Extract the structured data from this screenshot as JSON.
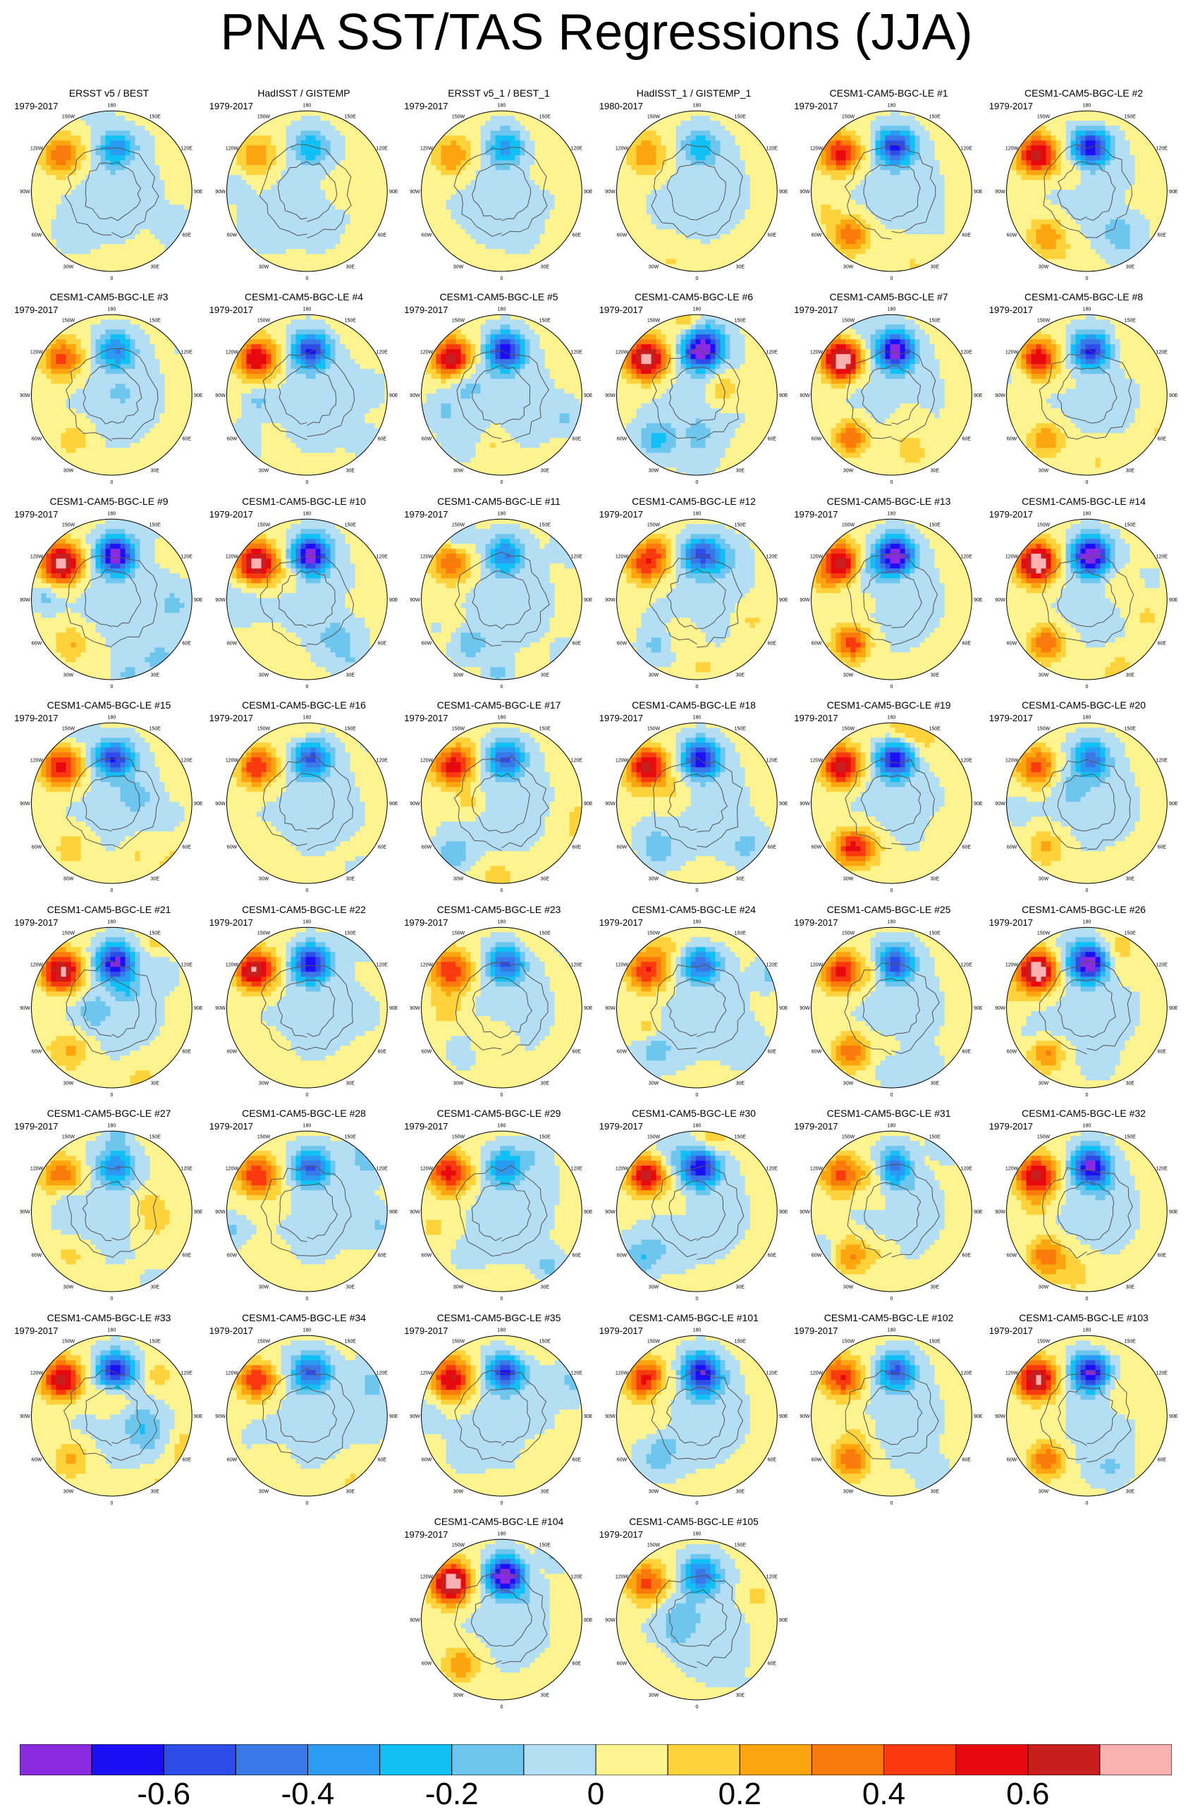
{
  "title": "PNA SST/TAS Regressions (JJA)",
  "panel_lon_labels": [
    "180",
    "150E",
    "120E",
    "90E",
    "60E",
    "30E",
    "0",
    "30W",
    "60W",
    "90W",
    "120W",
    "150W"
  ],
  "panels": [
    {
      "title": "ERSST v5 / BEST",
      "years": "1979-2017",
      "pattern": "obs",
      "strength": 0.35,
      "seed": 1
    },
    {
      "title": "HadISST / GISTEMP",
      "years": "1979-2017",
      "pattern": "obs",
      "strength": 0.25,
      "seed": 2
    },
    {
      "title": "ERSST v5_1 / BEST_1",
      "years": "1979-2017",
      "pattern": "obs",
      "strength": 0.3,
      "seed": 3
    },
    {
      "title": "HadISST_1 / GISTEMP_1",
      "years": "1980-2017",
      "pattern": "obs",
      "strength": 0.25,
      "seed": 4
    },
    {
      "title": "CESM1-CAM5-BGC-LE #1",
      "years": "1979-2017",
      "pattern": "model",
      "strength": 0.55,
      "seed": 5
    },
    {
      "title": "CESM1-CAM5-BGC-LE #2",
      "years": "1979-2017",
      "pattern": "model",
      "strength": 0.6,
      "seed": 6
    },
    {
      "title": "CESM1-CAM5-BGC-LE #3",
      "years": "1979-2017",
      "pattern": "model",
      "strength": 0.4,
      "seed": 7
    },
    {
      "title": "CESM1-CAM5-BGC-LE #4",
      "years": "1979-2017",
      "pattern": "model",
      "strength": 0.55,
      "seed": 8
    },
    {
      "title": "CESM1-CAM5-BGC-LE #5",
      "years": "1979-2017",
      "pattern": "model",
      "strength": 0.6,
      "seed": 9
    },
    {
      "title": "CESM1-CAM5-BGC-LE #6",
      "years": "1979-2017",
      "pattern": "model",
      "strength": 0.7,
      "seed": 10
    },
    {
      "title": "CESM1-CAM5-BGC-LE #7",
      "years": "1979-2017",
      "pattern": "model",
      "strength": 0.7,
      "seed": 11
    },
    {
      "title": "CESM1-CAM5-BGC-LE #8",
      "years": "1979-2017",
      "pattern": "model",
      "strength": 0.55,
      "seed": 12
    },
    {
      "title": "CESM1-CAM5-BGC-LE #9",
      "years": "1979-2017",
      "pattern": "model",
      "strength": 0.7,
      "seed": 13
    },
    {
      "title": "CESM1-CAM5-BGC-LE #10",
      "years": "1979-2017",
      "pattern": "model",
      "strength": 0.7,
      "seed": 14
    },
    {
      "title": "CESM1-CAM5-BGC-LE #11",
      "years": "1979-2017",
      "pattern": "model",
      "strength": 0.35,
      "seed": 15
    },
    {
      "title": "CESM1-CAM5-BGC-LE #12",
      "years": "1979-2017",
      "pattern": "model",
      "strength": 0.45,
      "seed": 16
    },
    {
      "title": "CESM1-CAM5-BGC-LE #13",
      "years": "1979-2017",
      "pattern": "model",
      "strength": 0.65,
      "seed": 17
    },
    {
      "title": "CESM1-CAM5-BGC-LE #14",
      "years": "1979-2017",
      "pattern": "model",
      "strength": 0.75,
      "seed": 18
    },
    {
      "title": "CESM1-CAM5-BGC-LE #15",
      "years": "1979-2017",
      "pattern": "model",
      "strength": 0.5,
      "seed": 19
    },
    {
      "title": "CESM1-CAM5-BGC-LE #16",
      "years": "1979-2017",
      "pattern": "model",
      "strength": 0.45,
      "seed": 20
    },
    {
      "title": "CESM1-CAM5-BGC-LE #17",
      "years": "1979-2017",
      "pattern": "model",
      "strength": 0.45,
      "seed": 21
    },
    {
      "title": "CESM1-CAM5-BGC-LE #18",
      "years": "1979-2017",
      "pattern": "model",
      "strength": 0.6,
      "seed": 22
    },
    {
      "title": "CESM1-CAM5-BGC-LE #19",
      "years": "1979-2017",
      "pattern": "model",
      "strength": 0.6,
      "seed": 23
    },
    {
      "title": "CESM1-CAM5-BGC-LE #20",
      "years": "1979-2017",
      "pattern": "model",
      "strength": 0.4,
      "seed": 24
    },
    {
      "title": "CESM1-CAM5-BGC-LE #21",
      "years": "1979-2017",
      "pattern": "model",
      "strength": 0.65,
      "seed": 25
    },
    {
      "title": "CESM1-CAM5-BGC-LE #22",
      "years": "1979-2017",
      "pattern": "model",
      "strength": 0.6,
      "seed": 26
    },
    {
      "title": "CESM1-CAM5-BGC-LE #23",
      "years": "1979-2017",
      "pattern": "model",
      "strength": 0.45,
      "seed": 27
    },
    {
      "title": "CESM1-CAM5-BGC-LE #24",
      "years": "1979-2017",
      "pattern": "model",
      "strength": 0.45,
      "seed": 28
    },
    {
      "title": "CESM1-CAM5-BGC-LE #25",
      "years": "1979-2017",
      "pattern": "model",
      "strength": 0.5,
      "seed": 29
    },
    {
      "title": "CESM1-CAM5-BGC-LE #26",
      "years": "1979-2017",
      "pattern": "model",
      "strength": 0.75,
      "seed": 30
    },
    {
      "title": "CESM1-CAM5-BGC-LE #27",
      "years": "1979-2017",
      "pattern": "model",
      "strength": 0.35,
      "seed": 31
    },
    {
      "title": "CESM1-CAM5-BGC-LE #28",
      "years": "1979-2017",
      "pattern": "model",
      "strength": 0.45,
      "seed": 32
    },
    {
      "title": "CESM1-CAM5-BGC-LE #29",
      "years": "1979-2017",
      "pattern": "model",
      "strength": 0.4,
      "seed": 33
    },
    {
      "title": "CESM1-CAM5-BGC-LE #30",
      "years": "1979-2017",
      "pattern": "model",
      "strength": 0.6,
      "seed": 34
    },
    {
      "title": "CESM1-CAM5-BGC-LE #31",
      "years": "1979-2017",
      "pattern": "model",
      "strength": 0.4,
      "seed": 35
    },
    {
      "title": "CESM1-CAM5-BGC-LE #32",
      "years": "1979-2017",
      "pattern": "model",
      "strength": 0.65,
      "seed": 36
    },
    {
      "title": "CESM1-CAM5-BGC-LE #33",
      "years": "1979-2017",
      "pattern": "model",
      "strength": 0.6,
      "seed": 37
    },
    {
      "title": "CESM1-CAM5-BGC-LE #34",
      "years": "1979-2017",
      "pattern": "model",
      "strength": 0.45,
      "seed": 38
    },
    {
      "title": "CESM1-CAM5-BGC-LE #35",
      "years": "1979-2017",
      "pattern": "model",
      "strength": 0.55,
      "seed": 39
    },
    {
      "title": "CESM1-CAM5-BGC-LE #101",
      "years": "1979-2017",
      "pattern": "model",
      "strength": 0.55,
      "seed": 40
    },
    {
      "title": "CESM1-CAM5-BGC-LE #102",
      "years": "1979-2017",
      "pattern": "model",
      "strength": 0.5,
      "seed": 41
    },
    {
      "title": "CESM1-CAM5-BGC-LE #103",
      "years": "1979-2017",
      "pattern": "model",
      "strength": 0.65,
      "seed": 42
    },
    {
      "title": "CESM1-CAM5-BGC-LE #104",
      "years": "1979-2017",
      "pattern": "model",
      "strength": 0.75,
      "seed": 43
    },
    {
      "title": "CESM1-CAM5-BGC-LE #105",
      "years": "1979-2017",
      "pattern": "model",
      "strength": 0.4,
      "seed": 44
    }
  ],
  "colorbar": {
    "colors": [
      "#8a2be2",
      "#1a0ff5",
      "#2e4de8",
      "#3a78e8",
      "#2a9af2",
      "#11c0f5",
      "#6ec6ee",
      "#b3def3",
      "#fdf38f",
      "#fdd23a",
      "#fca50f",
      "#fb7a0c",
      "#f93a0e",
      "#e6090e",
      "#c81e1e",
      "#fbb1b1"
    ],
    "labels": [
      "-0.6",
      "-0.4",
      "-0.2",
      "0",
      "0.2",
      "0.4",
      "0.6"
    ]
  }
}
